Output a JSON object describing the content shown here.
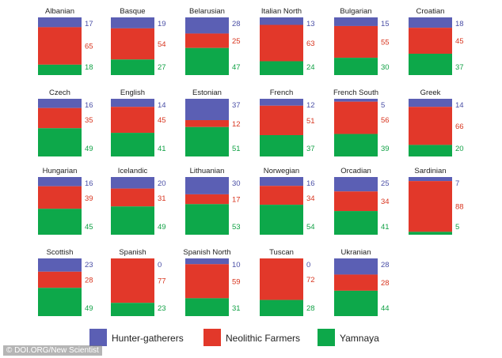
{
  "credit": "© DOI.ORG/New Scientist",
  "colors": {
    "hunter": "#5b5fb4",
    "farmer": "#e2382a",
    "yamnaya": "#0da84a"
  },
  "chart_data": {
    "type": "stacked-bar",
    "unit": "%",
    "series": [
      {
        "key": "hunter",
        "name": "Hunter-gatherers"
      },
      {
        "key": "farmer",
        "name": "Neolithic Farmers"
      },
      {
        "key": "yamnaya",
        "name": "Yamnaya"
      }
    ],
    "populations": [
      {
        "name": "Albanian",
        "hunter": 17,
        "farmer": 65,
        "yamnaya": 18
      },
      {
        "name": "Basque",
        "hunter": 19,
        "farmer": 54,
        "yamnaya": 27
      },
      {
        "name": "Belarusian",
        "hunter": 28,
        "farmer": 25,
        "yamnaya": 47
      },
      {
        "name": "Italian North",
        "hunter": 13,
        "farmer": 63,
        "yamnaya": 24
      },
      {
        "name": "Bulgarian",
        "hunter": 15,
        "farmer": 55,
        "yamnaya": 30
      },
      {
        "name": "Croatian",
        "hunter": 18,
        "farmer": 45,
        "yamnaya": 37
      },
      {
        "name": "Czech",
        "hunter": 16,
        "farmer": 35,
        "yamnaya": 49
      },
      {
        "name": "English",
        "hunter": 14,
        "farmer": 45,
        "yamnaya": 41
      },
      {
        "name": "Estonian",
        "hunter": 37,
        "farmer": 12,
        "yamnaya": 51
      },
      {
        "name": "French",
        "hunter": 12,
        "farmer": 51,
        "yamnaya": 37
      },
      {
        "name": "French South",
        "hunter": 5,
        "farmer": 56,
        "yamnaya": 39
      },
      {
        "name": "Greek",
        "hunter": 14,
        "farmer": 66,
        "yamnaya": 20
      },
      {
        "name": "Hungarian",
        "hunter": 16,
        "farmer": 39,
        "yamnaya": 45
      },
      {
        "name": "Icelandic",
        "hunter": 20,
        "farmer": 31,
        "yamnaya": 49
      },
      {
        "name": "Lithuanian",
        "hunter": 30,
        "farmer": 17,
        "yamnaya": 53
      },
      {
        "name": "Norwegian",
        "hunter": 16,
        "farmer": 34,
        "yamnaya": 54
      },
      {
        "name": "Orcadian",
        "hunter": 25,
        "farmer": 34,
        "yamnaya": 41
      },
      {
        "name": "Sardinian",
        "hunter": 7,
        "farmer": 88,
        "yamnaya": 5
      },
      {
        "name": "Scottish",
        "hunter": 23,
        "farmer": 28,
        "yamnaya": 49
      },
      {
        "name": "Spanish",
        "hunter": 0,
        "farmer": 77,
        "yamnaya": 23
      },
      {
        "name": "Spanish North",
        "hunter": 10,
        "farmer": 59,
        "yamnaya": 31
      },
      {
        "name": "Tuscan",
        "hunter": 0,
        "farmer": 72,
        "yamnaya": 28
      },
      {
        "name": "Ukranian",
        "hunter": 28,
        "farmer": 28,
        "yamnaya": 44
      }
    ]
  }
}
